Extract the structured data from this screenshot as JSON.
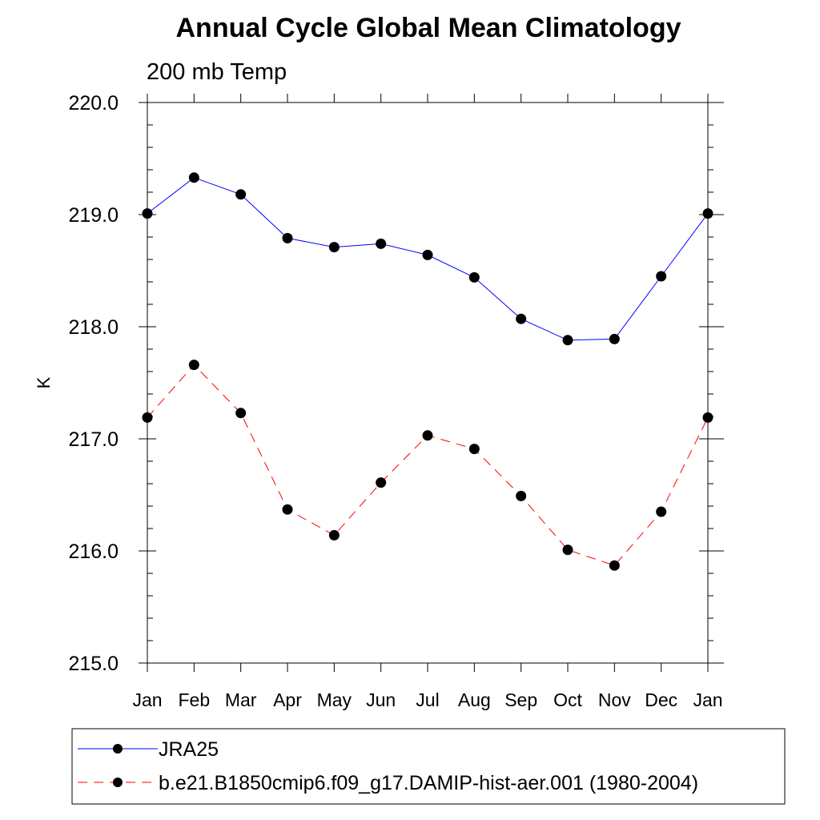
{
  "chart_data": {
    "type": "line",
    "title": "Annual Cycle Global Mean Climatology",
    "subtitle": "200 mb Temp",
    "xlabel": "",
    "ylabel": "K",
    "categories": [
      "Jan",
      "Feb",
      "Mar",
      "Apr",
      "May",
      "Jun",
      "Jul",
      "Aug",
      "Sep",
      "Oct",
      "Nov",
      "Dec",
      "Jan"
    ],
    "ylim": [
      215.0,
      220.0
    ],
    "ytick_values": [
      215.0,
      216.0,
      217.0,
      218.0,
      219.0,
      220.0
    ],
    "ytick_labels": [
      "215.0",
      "216.0",
      "217.0",
      "218.0",
      "219.0",
      "220.0"
    ],
    "grid": false,
    "legend_position": "bottom",
    "series": [
      {
        "name": "JRA25",
        "color": "#0000ff",
        "line_style": "solid",
        "marker": "filled-circle",
        "values": [
          219.01,
          219.33,
          219.18,
          218.79,
          218.71,
          218.74,
          218.64,
          218.44,
          218.07,
          217.88,
          217.89,
          218.45,
          219.01
        ]
      },
      {
        "name": "b.e21.B1850cmip6.f09_g17.DAMIP-hist-aer.001 (1980-2004)",
        "color": "#ff0000",
        "line_style": "dashed",
        "marker": "filled-circle",
        "values": [
          217.19,
          217.66,
          217.23,
          216.37,
          216.14,
          216.61,
          217.03,
          216.91,
          216.49,
          216.01,
          215.87,
          216.35,
          217.19
        ]
      }
    ]
  }
}
